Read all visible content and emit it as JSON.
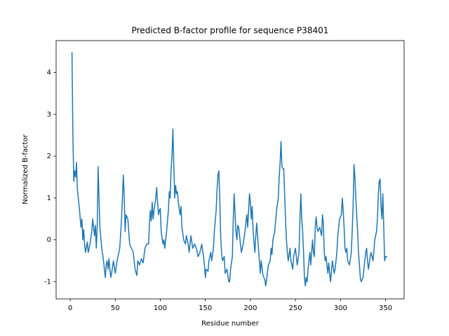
{
  "chart_data": {
    "type": "line",
    "title": "Predicted B-factor profile for sequence P38401",
    "xlabel": "Residue number",
    "ylabel": "Normalized B-factor",
    "color": "#1f77b4",
    "xlim": [
      -15.6,
      370.6
    ],
    "ylim": [
      -1.41,
      4.76
    ],
    "xticks": [
      0,
      50,
      100,
      150,
      200,
      250,
      300,
      350
    ],
    "yticks": [
      -1,
      0,
      1,
      2,
      3,
      4
    ],
    "x": [
      2,
      3,
      4,
      5,
      6,
      7,
      8,
      10,
      12,
      13,
      14,
      15,
      16,
      17,
      19,
      20,
      22,
      24,
      25,
      26,
      27,
      28,
      29,
      30,
      31,
      32,
      33,
      35,
      37,
      39,
      40,
      41,
      42,
      43,
      45,
      46,
      48,
      50,
      52,
      53,
      55,
      57,
      59,
      60,
      61,
      62,
      64,
      65,
      66,
      68,
      70,
      72,
      74,
      75,
      77,
      79,
      81,
      83,
      85,
      87,
      88,
      89,
      90,
      91,
      92,
      93,
      95,
      96,
      97,
      98,
      99,
      100,
      101,
      103,
      104,
      105,
      107,
      109,
      110,
      111,
      112,
      113,
      114,
      115,
      116,
      117,
      118,
      119,
      120,
      122,
      123,
      124,
      126,
      128,
      129,
      131,
      132,
      133,
      134,
      136,
      138,
      140,
      142,
      144,
      146,
      148,
      149,
      150,
      151,
      153,
      154,
      156,
      157,
      159,
      160,
      162,
      163,
      164,
      165,
      166,
      167,
      168,
      169,
      171,
      172,
      174,
      176,
      177,
      178,
      180,
      181,
      182,
      183,
      184,
      185,
      186,
      187,
      188,
      190,
      192,
      194,
      196,
      197,
      198,
      199,
      200,
      201,
      202,
      203,
      205,
      206,
      207,
      209,
      211,
      212,
      214,
      216,
      217,
      218,
      220,
      222,
      223,
      224,
      225,
      227,
      229,
      231,
      232,
      233,
      234,
      235,
      236,
      237,
      238,
      239,
      240,
      241,
      242,
      244,
      245,
      247,
      248,
      250,
      252,
      254,
      255,
      256,
      257,
      258,
      259,
      260,
      261,
      262,
      263,
      264,
      265,
      266,
      267,
      268,
      269,
      270,
      271,
      272,
      273,
      274,
      275,
      277,
      279,
      280,
      281,
      282,
      283,
      284,
      286,
      287,
      288,
      289,
      291,
      293,
      294,
      296,
      297,
      299,
      301,
      302,
      303,
      304,
      305,
      306,
      307,
      308,
      310,
      312,
      313,
      314,
      315,
      316,
      317,
      318,
      319,
      320,
      321,
      322,
      323,
      325,
      326,
      327,
      328,
      329,
      330,
      331,
      333,
      334,
      336,
      337,
      338,
      340,
      341,
      342,
      343,
      344,
      345,
      346,
      347,
      348,
      349,
      350,
      352
    ],
    "values": [
      4.48,
      2.5,
      1.4,
      1.65,
      1.5,
      1.85,
      1.2,
      0.8,
      0.3,
      0.5,
      0.0,
      0.25,
      -0.1,
      -0.3,
      -0.05,
      -0.3,
      -0.1,
      0.2,
      0.5,
      0.3,
      0.1,
      0.35,
      -0.2,
      0.3,
      1.75,
      1.0,
      0.3,
      -0.2,
      -0.5,
      -0.9,
      -0.6,
      -0.5,
      -0.7,
      -0.45,
      -0.9,
      -0.8,
      -0.5,
      -0.8,
      -0.5,
      -0.4,
      -0.2,
      0.5,
      1.55,
      1.0,
      0.2,
      0.6,
      0.5,
      0.2,
      -0.1,
      -0.2,
      -0.3,
      -0.7,
      -0.85,
      -0.5,
      -0.6,
      -0.45,
      -0.55,
      -0.2,
      -0.1,
      -0.1,
      0.4,
      0.7,
      0.45,
      0.9,
      0.5,
      0.7,
      1.0,
      1.25,
      0.9,
      0.6,
      0.7,
      0.75,
      0.2,
      -0.1,
      0.0,
      -0.2,
      0.2,
      0.7,
      1.15,
      1.0,
      1.7,
      2.0,
      2.65,
      1.8,
      1.0,
      1.3,
      1.1,
      1.15,
      0.9,
      0.6,
      0.8,
      0.3,
      0.0,
      -0.1,
      0.1,
      -0.1,
      -0.3,
      -0.1,
      0.1,
      -0.2,
      -0.1,
      -0.2,
      -0.4,
      -0.3,
      -0.1,
      -0.4,
      -0.6,
      -0.9,
      -0.7,
      -0.75,
      -0.5,
      -0.3,
      -0.5,
      -0.2,
      0.2,
      0.7,
      1.2,
      1.55,
      1.65,
      1.0,
      0.1,
      -0.3,
      -0.5,
      -0.4,
      -0.8,
      -0.7,
      -1.0,
      -1.0,
      -0.7,
      -0.4,
      0.5,
      1.1,
      0.6,
      0.2,
      0.0,
      0.35,
      0.3,
      0.1,
      -0.3,
      -0.1,
      0.2,
      0.6,
      0.3,
      0.7,
      1.1,
      0.9,
      0.5,
      0.8,
      0.2,
      -0.3,
      0.1,
      0.4,
      -0.2,
      -0.8,
      -0.5,
      -0.85,
      -0.95,
      -1.1,
      -0.95,
      -0.6,
      -0.5,
      -0.2,
      -0.35,
      0.0,
      0.2,
      0.7,
      1.0,
      1.5,
      1.85,
      2.35,
      1.75,
      1.7,
      1.7,
      1.1,
      0.5,
      0.0,
      -0.3,
      -0.5,
      -0.2,
      -0.5,
      -0.7,
      -0.4,
      -0.2,
      -0.6,
      -0.3,
      0.5,
      1.1,
      0.5,
      0.2,
      -0.3,
      -0.9,
      -1.1,
      -0.9,
      -1.0,
      -0.7,
      -0.5,
      -0.3,
      -0.6,
      -0.3,
      0.0,
      -0.3,
      -0.4,
      0.3,
      0.55,
      0.3,
      0.2,
      0.3,
      0.1,
      0.6,
      0.4,
      -0.3,
      -0.5,
      -0.4,
      -0.8,
      -0.55,
      -0.8,
      -1.0,
      -0.5,
      -0.8,
      -0.7,
      -0.3,
      0.1,
      0.5,
      0.6,
      1.0,
      0.7,
      0.3,
      -0.2,
      -0.3,
      -0.2,
      -0.5,
      -0.6,
      -0.3,
      0.2,
      0.8,
      1.8,
      1.5,
      1.0,
      0.6,
      0.2,
      -0.3,
      -0.6,
      -0.9,
      -1.0,
      -0.9,
      -0.7,
      -0.5,
      -0.3,
      -0.2,
      -0.5,
      -0.7,
      -0.4,
      -0.3,
      -0.5,
      -0.3,
      0.0,
      0.2,
      0.5,
      1.1,
      1.4,
      1.45,
      0.8,
      0.5,
      1.1,
      0.3,
      -0.5,
      -0.4,
      -0.4
    ]
  }
}
